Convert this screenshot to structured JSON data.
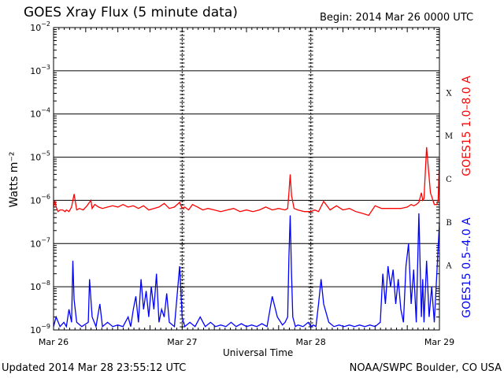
{
  "header": {
    "title": "GOES Xray Flux (5 minute data)",
    "begin": "Begin:  2014 Mar 26 0000 UTC"
  },
  "footer": {
    "updated": "Updated 2014 Mar 28 23:55:12 UTC",
    "credit": "NOAA/SWPC Boulder, CO USA"
  },
  "chart_data": {
    "type": "line",
    "title": "GOES Xray Flux (5 minute data)",
    "xlabel": "Universal Time",
    "ylabel": "Watts m⁻²",
    "yscale": "log",
    "ylim": [
      1e-09,
      0.01
    ],
    "xlim": [
      0,
      3
    ],
    "xunit": "days since 2014 Mar 26 0000 UTC",
    "grid": true,
    "x_tick_labels": [
      "Mar 26",
      "Mar 27",
      "Mar 28",
      "Mar 29"
    ],
    "y_tick_exponents": [
      -9,
      -8,
      -7,
      -6,
      -5,
      -4,
      -3,
      -2
    ],
    "flare_classes": [
      "A",
      "B",
      "C",
      "M",
      "X"
    ],
    "series": [
      {
        "name": "GOES15 1.0–8.0 A",
        "color": "#ff0000",
        "x": [
          0.0,
          0.01,
          0.02,
          0.035,
          0.05,
          0.07,
          0.09,
          0.1,
          0.12,
          0.14,
          0.16,
          0.18,
          0.2,
          0.23,
          0.26,
          0.29,
          0.3,
          0.32,
          0.35,
          0.38,
          0.42,
          0.46,
          0.5,
          0.54,
          0.58,
          0.62,
          0.66,
          0.7,
          0.74,
          0.78,
          0.82,
          0.86,
          0.9,
          0.94,
          0.98,
          1.0,
          1.02,
          1.05,
          1.08,
          1.12,
          1.16,
          1.2,
          1.25,
          1.3,
          1.35,
          1.4,
          1.45,
          1.5,
          1.55,
          1.6,
          1.65,
          1.7,
          1.75,
          1.8,
          1.82,
          1.83,
          1.84,
          1.85,
          1.87,
          1.9,
          1.95,
          2.0,
          2.03,
          2.06,
          2.1,
          2.15,
          2.2,
          2.25,
          2.3,
          2.35,
          2.4,
          2.45,
          2.5,
          2.55,
          2.6,
          2.65,
          2.7,
          2.75,
          2.78,
          2.8,
          2.82,
          2.84,
          2.86,
          2.87,
          2.88,
          2.9,
          2.93,
          2.96,
          2.98,
          2.99,
          3.0
        ],
        "y": [
          7e-07,
          1e-06,
          7e-07,
          5.5e-07,
          6e-07,
          6e-07,
          5.5e-07,
          6e-07,
          5.5e-07,
          7e-07,
          1.4e-06,
          6e-07,
          6.5e-07,
          6e-07,
          7.5e-07,
          1e-06,
          6.5e-07,
          8e-07,
          7e-07,
          6.5e-07,
          7e-07,
          7.5e-07,
          7e-07,
          8e-07,
          7e-07,
          7.5e-07,
          6.5e-07,
          7.5e-07,
          6e-07,
          6.5e-07,
          7e-07,
          8.5e-07,
          6.5e-07,
          7e-07,
          9e-07,
          6.5e-07,
          7e-07,
          6e-07,
          8e-07,
          7e-07,
          6e-07,
          6.5e-07,
          6e-07,
          5.5e-07,
          6e-07,
          6.5e-07,
          5.5e-07,
          6e-07,
          5.5e-07,
          6e-07,
          7e-07,
          6e-07,
          6.5e-07,
          6e-07,
          6.5e-07,
          1.5e-06,
          4e-06,
          1.3e-06,
          6.5e-07,
          6e-07,
          5.5e-07,
          5.5e-07,
          6e-07,
          5.5e-07,
          9.5e-07,
          6e-07,
          7.5e-07,
          6e-07,
          6.5e-07,
          5.5e-07,
          5e-07,
          4.5e-07,
          7.5e-07,
          6.5e-07,
          6.5e-07,
          6.5e-07,
          6.5e-07,
          7e-07,
          8e-07,
          7.5e-07,
          8e-07,
          9e-07,
          1.5e-06,
          1e-06,
          1.1e-06,
          1.7e-05,
          1.5e-06,
          8e-07,
          8e-07,
          1e-06,
          9e-06
        ]
      },
      {
        "name": "GOES15 0.5–4.0 A",
        "color": "#0000ff",
        "x": [
          0.0,
          0.02,
          0.05,
          0.08,
          0.1,
          0.12,
          0.14,
          0.15,
          0.16,
          0.18,
          0.22,
          0.27,
          0.28,
          0.3,
          0.33,
          0.36,
          0.38,
          0.42,
          0.46,
          0.5,
          0.54,
          0.58,
          0.6,
          0.62,
          0.64,
          0.66,
          0.68,
          0.7,
          0.72,
          0.74,
          0.76,
          0.78,
          0.8,
          0.82,
          0.84,
          0.86,
          0.88,
          0.9,
          0.94,
          0.98,
          1.0,
          1.02,
          1.06,
          1.1,
          1.14,
          1.18,
          1.22,
          1.26,
          1.3,
          1.34,
          1.38,
          1.42,
          1.46,
          1.5,
          1.54,
          1.58,
          1.62,
          1.66,
          1.7,
          1.74,
          1.78,
          1.8,
          1.82,
          1.83,
          1.84,
          1.85,
          1.86,
          1.88,
          1.9,
          1.94,
          1.98,
          2.0,
          2.02,
          2.04,
          2.06,
          2.08,
          2.1,
          2.14,
          2.18,
          2.22,
          2.26,
          2.3,
          2.34,
          2.38,
          2.42,
          2.46,
          2.5,
          2.54,
          2.56,
          2.58,
          2.6,
          2.62,
          2.64,
          2.66,
          2.68,
          2.7,
          2.72,
          2.74,
          2.76,
          2.78,
          2.8,
          2.82,
          2.84,
          2.86,
          2.87,
          2.88,
          2.9,
          2.92,
          2.94,
          2.96,
          2.98,
          3.0
        ],
        "y": [
          1.2e-09,
          2e-09,
          1.2e-09,
          1.5e-09,
          1.2e-09,
          3e-09,
          1.5e-09,
          4e-08,
          5e-09,
          1.5e-09,
          1.2e-09,
          1.5e-09,
          1.5e-08,
          2e-09,
          1.2e-09,
          4e-09,
          1.2e-09,
          1.5e-09,
          1.2e-09,
          1.3e-09,
          1.2e-09,
          2e-09,
          1.2e-09,
          3e-09,
          6e-09,
          1.5e-09,
          1.5e-08,
          3e-09,
          8e-09,
          2e-09,
          1e-08,
          3e-09,
          2e-08,
          1.5e-09,
          3e-09,
          2e-09,
          7e-09,
          1.5e-09,
          1.2e-09,
          3e-08,
          2e-09,
          1.2e-09,
          1.5e-09,
          1.2e-09,
          2e-09,
          1.2e-09,
          1.5e-09,
          1.2e-09,
          1.3e-09,
          1.2e-09,
          1.5e-09,
          1.2e-09,
          1.4e-09,
          1.2e-09,
          1.3e-09,
          1.2e-09,
          1.4e-09,
          1.2e-09,
          6e-09,
          2e-09,
          1.3e-09,
          1.5e-09,
          2e-09,
          5e-08,
          4.5e-07,
          2e-08,
          2e-09,
          1.2e-09,
          1.3e-09,
          1.2e-09,
          1.5e-09,
          1.2e-09,
          1.3e-09,
          1.2e-09,
          4e-09,
          1.5e-08,
          4e-09,
          1.5e-09,
          1.2e-09,
          1.3e-09,
          1.2e-09,
          1.3e-09,
          1.2e-09,
          1.3e-09,
          1.2e-09,
          1.3e-09,
          1.2e-09,
          1.5e-09,
          2e-08,
          4e-09,
          3e-08,
          1e-08,
          2.5e-08,
          4e-09,
          1.5e-08,
          3e-09,
          1.5e-09,
          3e-08,
          1e-07,
          4e-09,
          2.5e-08,
          1.5e-09,
          5e-07,
          2e-09,
          1.5e-08,
          1.5e-09,
          4e-08,
          2e-09,
          1e-08,
          1.5e-09,
          2e-08,
          3e-07
        ]
      }
    ]
  }
}
